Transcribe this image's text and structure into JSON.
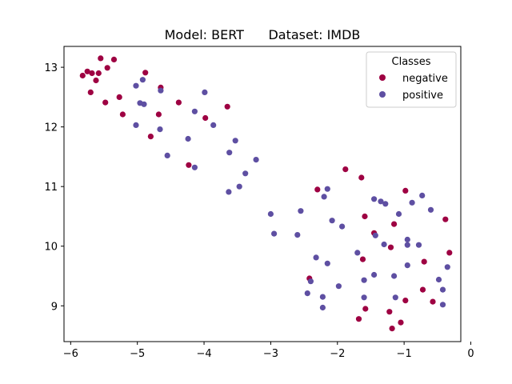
{
  "chart_data": {
    "type": "scatter",
    "title": "Model: BERT      Dataset: IMDB",
    "xlabel": "",
    "ylabel": "",
    "xlim": [
      -6.1,
      -0.15
    ],
    "ylim": [
      8.4,
      13.35
    ],
    "xticks": [
      -6,
      -5,
      -4,
      -3,
      -2,
      -1,
      0
    ],
    "yticks": [
      9,
      10,
      11,
      12,
      13
    ],
    "grid": false,
    "legend": {
      "title": "Classes",
      "placement": "top-right"
    },
    "series": [
      {
        "name": "negative",
        "color": "#9e0142",
        "points": [
          [
            -5.82,
            12.86
          ],
          [
            -5.75,
            12.93
          ],
          [
            -5.68,
            12.9
          ],
          [
            -5.62,
            12.78
          ],
          [
            -5.58,
            12.9
          ],
          [
            -5.55,
            13.15
          ],
          [
            -5.45,
            12.99
          ],
          [
            -5.35,
            13.13
          ],
          [
            -5.7,
            12.58
          ],
          [
            -5.48,
            12.41
          ],
          [
            -5.27,
            12.5
          ],
          [
            -5.22,
            12.21
          ],
          [
            -4.88,
            12.91
          ],
          [
            -4.65,
            12.66
          ],
          [
            -4.68,
            12.21
          ],
          [
            -4.8,
            11.84
          ],
          [
            -4.38,
            12.41
          ],
          [
            -4.23,
            11.36
          ],
          [
            -3.98,
            12.15
          ],
          [
            -3.65,
            12.34
          ],
          [
            -1.88,
            11.29
          ],
          [
            -1.64,
            11.15
          ],
          [
            -2.3,
            10.95
          ],
          [
            -0.98,
            10.93
          ],
          [
            -1.59,
            10.5
          ],
          [
            -0.38,
            10.45
          ],
          [
            -1.15,
            10.37
          ],
          [
            -1.45,
            10.22
          ],
          [
            -1.2,
            9.98
          ],
          [
            -0.32,
            9.89
          ],
          [
            -1.62,
            9.78
          ],
          [
            -0.7,
            9.74
          ],
          [
            -2.42,
            9.46
          ],
          [
            -0.72,
            9.27
          ],
          [
            -0.98,
            9.09
          ],
          [
            -0.57,
            9.07
          ],
          [
            -1.58,
            8.95
          ],
          [
            -1.22,
            8.9
          ],
          [
            -1.68,
            8.78
          ],
          [
            -1.05,
            8.72
          ],
          [
            -1.18,
            8.62
          ]
        ]
      },
      {
        "name": "positive",
        "color": "#5e4fa2",
        "points": [
          [
            -4.92,
            12.79
          ],
          [
            -5.02,
            12.69
          ],
          [
            -4.65,
            12.61
          ],
          [
            -3.99,
            12.58
          ],
          [
            -4.96,
            12.4
          ],
          [
            -4.9,
            12.38
          ],
          [
            -4.14,
            12.26
          ],
          [
            -3.86,
            12.03
          ],
          [
            -5.02,
            12.03
          ],
          [
            -4.66,
            11.96
          ],
          [
            -3.53,
            11.77
          ],
          [
            -4.24,
            11.8
          ],
          [
            -3.62,
            11.57
          ],
          [
            -4.55,
            11.52
          ],
          [
            -3.22,
            11.45
          ],
          [
            -4.14,
            11.32
          ],
          [
            -3.38,
            11.22
          ],
          [
            -3.47,
            11.0
          ],
          [
            -3.63,
            10.91
          ],
          [
            -2.15,
            10.96
          ],
          [
            -2.2,
            10.83
          ],
          [
            -0.73,
            10.85
          ],
          [
            -1.45,
            10.79
          ],
          [
            -1.35,
            10.75
          ],
          [
            -1.28,
            10.71
          ],
          [
            -0.88,
            10.73
          ],
          [
            -0.6,
            10.61
          ],
          [
            -2.55,
            10.59
          ],
          [
            -1.08,
            10.54
          ],
          [
            -3.0,
            10.54
          ],
          [
            -2.08,
            10.43
          ],
          [
            -1.93,
            10.33
          ],
          [
            -2.95,
            10.21
          ],
          [
            -2.6,
            10.19
          ],
          [
            -1.43,
            10.18
          ],
          [
            -0.95,
            10.11
          ],
          [
            -1.3,
            10.03
          ],
          [
            -0.95,
            10.02
          ],
          [
            -0.78,
            10.02
          ],
          [
            -1.7,
            9.89
          ],
          [
            -2.32,
            9.81
          ],
          [
            -2.15,
            9.71
          ],
          [
            -0.95,
            9.68
          ],
          [
            -0.35,
            9.65
          ],
          [
            -1.45,
            9.52
          ],
          [
            -1.15,
            9.5
          ],
          [
            -1.6,
            9.43
          ],
          [
            -2.4,
            9.41
          ],
          [
            -0.48,
            9.44
          ],
          [
            -1.98,
            9.33
          ],
          [
            -0.42,
            9.27
          ],
          [
            -2.45,
            9.21
          ],
          [
            -2.22,
            9.15
          ],
          [
            -1.6,
            9.14
          ],
          [
            -1.13,
            9.14
          ],
          [
            -2.22,
            8.97
          ],
          [
            -0.42,
            9.02
          ]
        ]
      }
    ]
  }
}
